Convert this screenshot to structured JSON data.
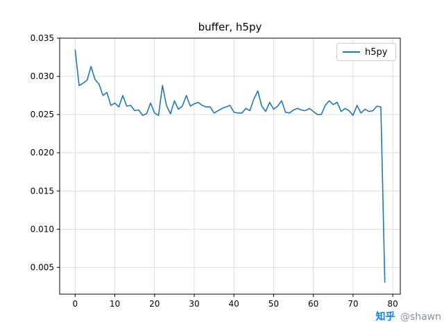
{
  "chart_data": {
    "type": "line",
    "title": "buffer, h5py",
    "xlabel": "",
    "ylabel": "",
    "xlim": [
      -3.9,
      81.9
    ],
    "ylim": [
      0.0015,
      0.035
    ],
    "xticks": [
      0,
      10,
      20,
      30,
      40,
      50,
      60,
      70,
      80
    ],
    "yticks": [
      0.005,
      0.01,
      0.015,
      0.02,
      0.025,
      0.03,
      0.035
    ],
    "grid": true,
    "grid_color": "#d9d9d9",
    "legend_position": "upper right",
    "series": [
      {
        "name": "h5py",
        "color": "#1f77b4",
        "x_start": 0,
        "x_step": 1,
        "values": [
          0.0335,
          0.0288,
          0.0291,
          0.0295,
          0.0313,
          0.0296,
          0.029,
          0.0275,
          0.0279,
          0.0262,
          0.0265,
          0.026,
          0.0275,
          0.0261,
          0.0262,
          0.0255,
          0.0256,
          0.0249,
          0.0251,
          0.0265,
          0.0252,
          0.0249,
          0.0288,
          0.0262,
          0.0251,
          0.0268,
          0.0257,
          0.0261,
          0.0275,
          0.0261,
          0.0264,
          0.0266,
          0.0262,
          0.026,
          0.026,
          0.0252,
          0.0255,
          0.0258,
          0.026,
          0.0262,
          0.0253,
          0.0252,
          0.0252,
          0.0258,
          0.0255,
          0.027,
          0.0281,
          0.0261,
          0.0254,
          0.0266,
          0.0257,
          0.0261,
          0.0268,
          0.0253,
          0.0252,
          0.0256,
          0.0258,
          0.0256,
          0.0255,
          0.0258,
          0.0254,
          0.025,
          0.025,
          0.0262,
          0.0268,
          0.0263,
          0.0266,
          0.0254,
          0.0258,
          0.0255,
          0.0249,
          0.0262,
          0.0252,
          0.0257,
          0.0254,
          0.0255,
          0.0261,
          0.026,
          0.003
        ]
      }
    ]
  },
  "watermark": {
    "logo": "知乎",
    "username": "@shawn",
    "logo_color": "#0084ff"
  }
}
